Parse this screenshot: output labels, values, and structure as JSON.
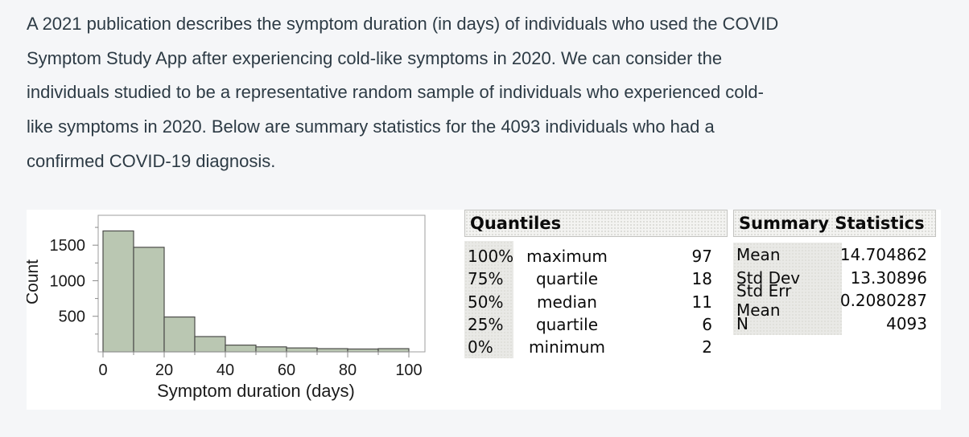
{
  "intro": {
    "lines": [
      "A 2021 publication describes the symptom duration (in days) of individuals who used the COVID",
      "Symptom Study App after experiencing cold-like symptoms in 2020. We can consider the",
      "individuals studied to be a representative random sample of individuals who experienced cold-",
      "like symptoms in 2020. Below are summary statistics for the 4093 individuals who had a",
      "confirmed COVID-19 diagnosis."
    ]
  },
  "chart_data": {
    "type": "bar",
    "subtype": "histogram",
    "title": "",
    "xlabel": "Symptom duration (days)",
    "ylabel": "Count",
    "bin_width": 10,
    "bin_start": 0,
    "bin_edges": [
      0,
      10,
      20,
      30,
      40,
      50,
      60,
      70,
      80,
      90,
      100
    ],
    "counts": [
      1700,
      1470,
      490,
      215,
      95,
      70,
      55,
      45,
      40,
      45
    ],
    "xticks": [
      0,
      20,
      40,
      60,
      80,
      100
    ],
    "xticks_minor": [
      10,
      30,
      50,
      70,
      90
    ],
    "yticks_major": [
      500,
      1000,
      1500
    ],
    "yticks_minor": [
      250,
      750,
      1250,
      1750
    ],
    "xlim": [
      0,
      100
    ],
    "ylim": [
      0,
      1920
    ],
    "grid": false,
    "legend": false,
    "bar_fill": "#bac7b2",
    "bar_stroke": "#4c4c4a"
  },
  "quantiles": {
    "title": "Quantiles",
    "rows": [
      {
        "pct": "100%",
        "label": "maximum",
        "value": "97"
      },
      {
        "pct": "75%",
        "label": "quartile",
        "value": "18"
      },
      {
        "pct": "50%",
        "label": "median",
        "value": "11"
      },
      {
        "pct": "25%",
        "label": "quartile",
        "value": "6"
      },
      {
        "pct": "0%",
        "label": "minimum",
        "value": "2"
      }
    ]
  },
  "summary": {
    "title": "Summary Statistics",
    "rows": [
      {
        "label": "Mean",
        "value": "14.704862"
      },
      {
        "label": "Std Dev",
        "value": "13.30896"
      },
      {
        "label": "Std Err Mean",
        "value": "0.2080287"
      },
      {
        "label": "N",
        "value": "4093"
      }
    ]
  },
  "colors": {
    "page_bg": "#f5f6f8",
    "panel_bg": "#ffffff",
    "text": "#2d3b45",
    "table_text": "#0b0b0b",
    "axis_text": "#1b1b1b",
    "frame_stroke": "#9d9d9d"
  }
}
